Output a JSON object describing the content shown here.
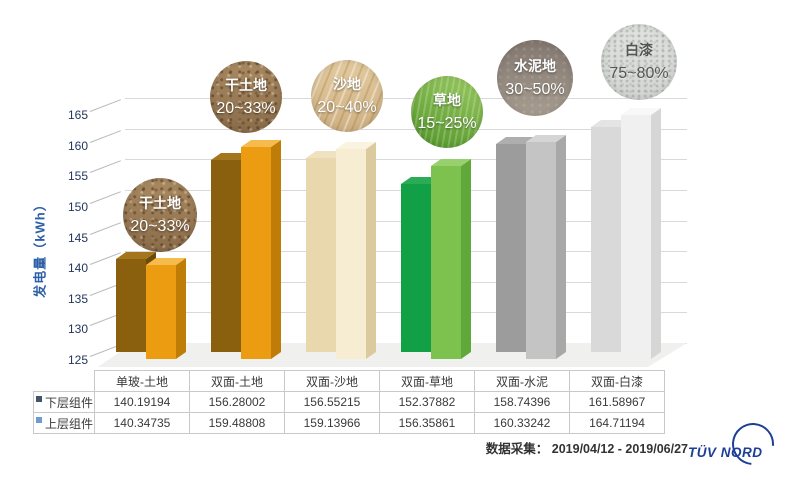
{
  "chart_data": {
    "type": "bar",
    "title": "",
    "ylabel": "发电量（kWh）",
    "ylim": [
      125,
      165
    ],
    "yticks": [
      165,
      160,
      155,
      150,
      145,
      140,
      135,
      130,
      125
    ],
    "grid": true,
    "style": "3d-column",
    "legend_position": "table-left",
    "categories": [
      "单玻-土地",
      "双面-土地",
      "双面-沙地",
      "双面-草地",
      "双面-水泥",
      "双面-白漆"
    ],
    "series": [
      {
        "name": "下层组件",
        "marker_color": "#44546a",
        "values": [
          140.19194,
          156.28002,
          156.55215,
          152.37882,
          158.74396,
          161.58967
        ]
      },
      {
        "name": "上层组件",
        "marker_color": "#6f9bd1",
        "values": [
          140.34735,
          159.48808,
          159.13966,
          156.35861,
          160.33242,
          164.71194
        ]
      }
    ],
    "annotations": [
      {
        "label": "干土地",
        "percent": "20~33%",
        "texture": "soil"
      },
      {
        "label": "干土地",
        "percent": "20~33%",
        "texture": "soil"
      },
      {
        "label": "沙地",
        "percent": "20~40%",
        "texture": "sand"
      },
      {
        "label": "草地",
        "percent": "15~25%",
        "texture": "grass"
      },
      {
        "label": "水泥地",
        "percent": "30~50%",
        "texture": "concrete"
      },
      {
        "label": "白漆",
        "percent": "75~80%",
        "texture": "paint"
      }
    ],
    "bar_themes": [
      {
        "lower": {
          "front": "#8a5f0e",
          "side": "#6b4a09",
          "top": "#a3751c"
        },
        "upper": {
          "front": "#eb9c10",
          "side": "#bf7d08",
          "top": "#f5bb4d"
        }
      },
      {
        "lower": {
          "front": "#8a5f0e",
          "side": "#6b4a09",
          "top": "#a3751c"
        },
        "upper": {
          "front": "#eb9c10",
          "side": "#bf7d08",
          "top": "#f5bb4d"
        }
      },
      {
        "lower": {
          "front": "#e9d8ad",
          "side": "#cdb987",
          "top": "#f0e2c0"
        },
        "upper": {
          "front": "#f7edd2",
          "side": "#dcca9f",
          "top": "#faf3e0"
        }
      },
      {
        "lower": {
          "front": "#12a046",
          "side": "#0c7e35",
          "top": "#2cab57"
        },
        "upper": {
          "front": "#7dc24f",
          "side": "#61a83b",
          "top": "#97d06d"
        }
      },
      {
        "lower": {
          "front": "#9c9c9c",
          "side": "#828282",
          "top": "#aeaeae"
        },
        "upper": {
          "front": "#c4c4c4",
          "side": "#a8a8a8",
          "top": "#d5d5d5"
        }
      },
      {
        "lower": {
          "front": "#d9d9d9",
          "side": "#bfbfbf",
          "top": "#e4e4e4"
        },
        "upper": {
          "front": "#f0f0f0",
          "side": "#d6d6d6",
          "top": "#f8f8f8"
        }
      }
    ]
  },
  "colors": {
    "axis_tick_text": "#24365e",
    "axis_title_text": "#2d5fa6",
    "gridline": "#d9d9d9",
    "logo_blue": "#1c3f94"
  },
  "footer": {
    "label": "数据采集：",
    "range": "2019/04/12 - 2019/06/27"
  },
  "logo": {
    "text": "TÜV NORD"
  }
}
